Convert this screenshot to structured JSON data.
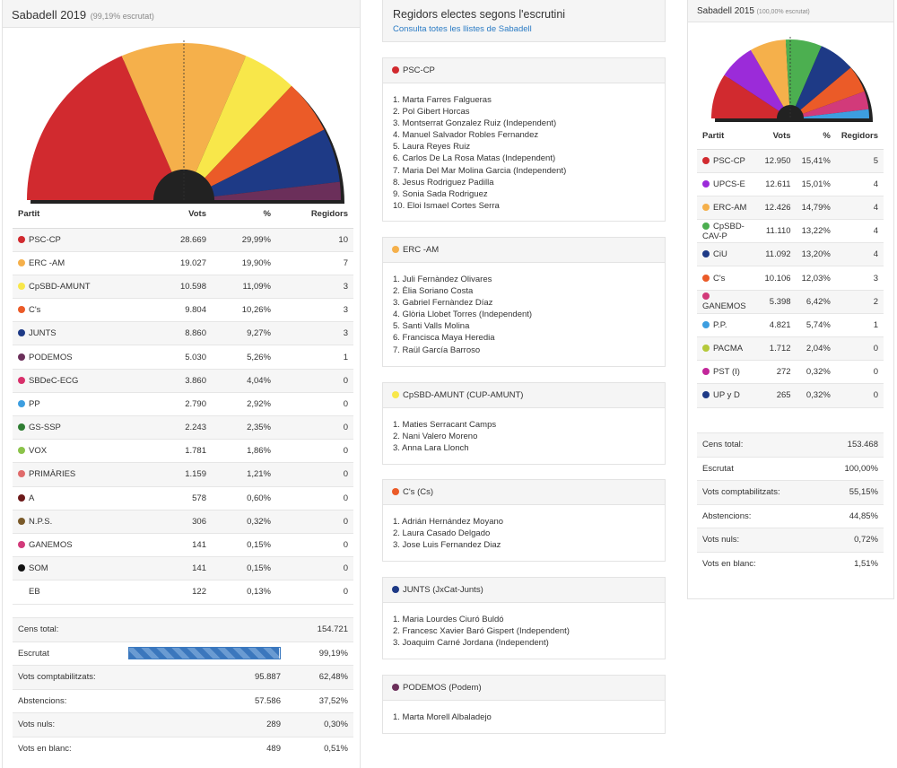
{
  "left": {
    "title": "Sabadell 2019",
    "subtitle": "(99,19% escrutat)",
    "headers": [
      "Partit",
      "Vots",
      "%",
      "Regidors"
    ],
    "rows": [
      {
        "party": "PSC-CP",
        "votes": "28.669",
        "pct": "29,99%",
        "seats": "10",
        "color": "#d12a2f"
      },
      {
        "party": "ERC -AM",
        "votes": "19.027",
        "pct": "19,90%",
        "seats": "7",
        "color": "#f5b04b"
      },
      {
        "party": "CpSBD-AMUNT",
        "votes": "10.598",
        "pct": "11,09%",
        "seats": "3",
        "color": "#f8e74a"
      },
      {
        "party": "C's",
        "votes": "9.804",
        "pct": "10,26%",
        "seats": "3",
        "color": "#eb5b28"
      },
      {
        "party": "JUNTS",
        "votes": "8.860",
        "pct": "9,27%",
        "seats": "3",
        "color": "#1e3a86"
      },
      {
        "party": "PODEMOS",
        "votes": "5.030",
        "pct": "5,26%",
        "seats": "1",
        "color": "#6b2f5a"
      },
      {
        "party": "SBDeC-ECG",
        "votes": "3.860",
        "pct": "4,04%",
        "seats": "0",
        "color": "#d8306b"
      },
      {
        "party": "PP",
        "votes": "2.790",
        "pct": "2,92%",
        "seats": "0",
        "color": "#3d9ee0"
      },
      {
        "party": "GS-SSP",
        "votes": "2.243",
        "pct": "2,35%",
        "seats": "0",
        "color": "#2e7d32"
      },
      {
        "party": "VOX",
        "votes": "1.781",
        "pct": "1,86%",
        "seats": "0",
        "color": "#8bc34a"
      },
      {
        "party": "PRIMÀRIES",
        "votes": "1.159",
        "pct": "1,21%",
        "seats": "0",
        "color": "#e06b6b"
      },
      {
        "party": "A",
        "votes": "578",
        "pct": "0,60%",
        "seats": "0",
        "color": "#6d1a1a"
      },
      {
        "party": "N.P.S.",
        "votes": "306",
        "pct": "0,32%",
        "seats": "0",
        "color": "#7a5a2a"
      },
      {
        "party": "GANEMOS",
        "votes": "141",
        "pct": "0,15%",
        "seats": "0",
        "color": "#d23a7a"
      },
      {
        "party": "SOM",
        "votes": "141",
        "pct": "0,15%",
        "seats": "0",
        "color": "#111111"
      },
      {
        "party": "EB",
        "votes": "122",
        "pct": "0,13%",
        "seats": "0",
        "color": ""
      }
    ],
    "stats": {
      "cens_label": "Cens total:",
      "cens": "154.721",
      "escrutat_label": "Escrutat",
      "escrutat": "99,19%",
      "escrutat_fraction": 0.9919,
      "comp_label": "Vots comptabilitzats:",
      "comp": "95.887",
      "comp_pct": "62,48%",
      "abs_label": "Abstencions:",
      "abs": "57.586",
      "abs_pct": "37,52%",
      "nuls_label": "Vots nuls:",
      "nuls": "289",
      "nuls_pct": "0,30%",
      "blanc_label": "Vots en blanc:",
      "blanc": "489",
      "blanc_pct": "0,51%"
    }
  },
  "middle": {
    "title": "Regidors electes segons l'escrutini",
    "link": "Consulta totes les llistes de Sabadell",
    "lists": [
      {
        "name": "PSC-CP",
        "color": "#d12a2f",
        "members": [
          "1. Marta Farres Falgueras",
          "2. Pol Gibert Horcas",
          "3. Montserrat Gonzalez Ruiz (Independent)",
          "4. Manuel Salvador Robles Fernandez",
          "5. Laura Reyes Ruiz",
          "6. Carlos De La Rosa Matas (Independent)",
          "7. Maria Del Mar Molina Garcia (Independent)",
          "8. Jesus Rodriguez Padilla",
          "9. Sonia Sada Rodriguez",
          "10. Eloi Ismael Cortes Serra"
        ]
      },
      {
        "name": "ERC -AM",
        "color": "#f5b04b",
        "members": [
          "1. Juli Fernàndez Olivares",
          "2. Èlia Soriano Costa",
          "3. Gabriel Fernàndez Díaz",
          "4. Glòria Llobet Torres (Independent)",
          "5. Santi Valls Molina",
          "6. Francisca Maya Heredia",
          "7. Raül García Barroso"
        ]
      },
      {
        "name": "CpSBD-AMUNT (CUP-AMUNT)",
        "color": "#f8e74a",
        "members": [
          "1. Maties Serracant Camps",
          "2. Nani Valero Moreno",
          "3. Anna Lara Llonch"
        ]
      },
      {
        "name": "C's (Cs)",
        "color": "#eb5b28",
        "members": [
          "1. Adrián Hernández Moyano",
          "2. Laura Casado Delgado",
          "3. Jose Luis Fernandez Diaz"
        ]
      },
      {
        "name": "JUNTS (JxCat-Junts)",
        "color": "#1e3a86",
        "members": [
          "1. Maria Lourdes Ciuró Buldó",
          "2. Francesc Xavier Baró Gispert (Independent)",
          "3. Joaquim Carné Jordana (Independent)"
        ]
      },
      {
        "name": "PODEMOS (Podem)",
        "color": "#6b2f5a",
        "members": [
          "1. Marta Morell Albaladejo"
        ]
      }
    ]
  },
  "right": {
    "title": "Sabadell 2015",
    "subtitle": "(100,00% escrutat)",
    "headers": [
      "Partit",
      "Vots",
      "%",
      "Regidors"
    ],
    "rows": [
      {
        "party": "PSC-CP",
        "votes": "12.950",
        "pct": "15,41%",
        "seats": "5",
        "color": "#d12a2f"
      },
      {
        "party": "UPCS-E",
        "votes": "12.611",
        "pct": "15,01%",
        "seats": "4",
        "color": "#9b2bd9"
      },
      {
        "party": "ERC-AM",
        "votes": "12.426",
        "pct": "14,79%",
        "seats": "4",
        "color": "#f5b04b"
      },
      {
        "party": "CpSBD-CAV-P",
        "votes": "11.110",
        "pct": "13,22%",
        "seats": "4",
        "color": "#4caf50"
      },
      {
        "party": "CiU",
        "votes": "11.092",
        "pct": "13,20%",
        "seats": "4",
        "color": "#1e3a86"
      },
      {
        "party": "C's",
        "votes": "10.106",
        "pct": "12,03%",
        "seats": "3",
        "color": "#eb5b28"
      },
      {
        "party": "GANEMOS",
        "votes": "5.398",
        "pct": "6,42%",
        "seats": "2",
        "color": "#d23a7a"
      },
      {
        "party": "P.P.",
        "votes": "4.821",
        "pct": "5,74%",
        "seats": "1",
        "color": "#3d9ee0"
      },
      {
        "party": "PACMA",
        "votes": "1.712",
        "pct": "2,04%",
        "seats": "0",
        "color": "#b5c93a"
      },
      {
        "party": "PST (I)",
        "votes": "272",
        "pct": "0,32%",
        "seats": "0",
        "color": "#c2269a"
      },
      {
        "party": "UP y D",
        "votes": "265",
        "pct": "0,32%",
        "seats": "0",
        "color": "#1e3a86"
      }
    ],
    "stats": [
      {
        "label": "Cens total:",
        "value": "153.468"
      },
      {
        "label": "Escrutat",
        "value": "100,00%"
      },
      {
        "label": "Vots comptabilitzats:",
        "value": "55,15%"
      },
      {
        "label": "Abstencions:",
        "value": "44,85%"
      },
      {
        "label": "Vots nuls:",
        "value": "0,72%"
      },
      {
        "label": "Vots en blanc:",
        "value": "1,51%"
      }
    ]
  }
}
